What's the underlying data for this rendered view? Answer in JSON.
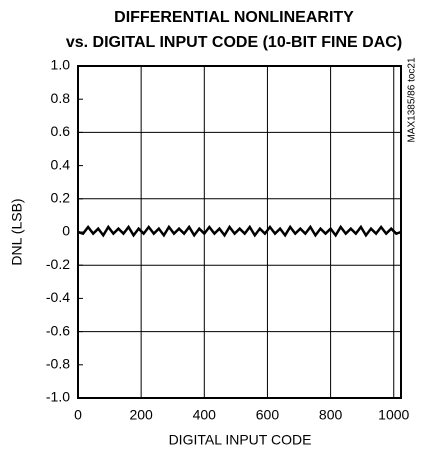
{
  "chart_data": {
    "type": "line",
    "title": "DIFFERENTIAL NONLINEARITY",
    "subtitle": "vs. DIGITAL INPUT CODE (10-BIT FINE DAC)",
    "x_label": "DIGITAL INPUT CODE",
    "y_label": "DNL (LSB)",
    "annotation": "MAX1385/86 toc21",
    "x": [
      0,
      16,
      32,
      48,
      64,
      80,
      96,
      112,
      128,
      144,
      160,
      176,
      192,
      208,
      224,
      240,
      256,
      272,
      288,
      304,
      320,
      336,
      352,
      368,
      384,
      400,
      416,
      432,
      448,
      464,
      480,
      496,
      512,
      528,
      544,
      560,
      576,
      592,
      608,
      624,
      640,
      656,
      672,
      688,
      704,
      720,
      736,
      752,
      768,
      784,
      800,
      816,
      832,
      848,
      864,
      880,
      896,
      912,
      928,
      944,
      960,
      976,
      992,
      1008,
      1023
    ],
    "series": [
      {
        "name": "DNL",
        "color": "#000000",
        "values": [
          0,
          -0.01,
          0.03,
          -0.01,
          0.02,
          -0.02,
          0.03,
          -0.01,
          0.02,
          -0.01,
          0.03,
          -0.02,
          0.02,
          -0.01,
          0.03,
          -0.01,
          0.02,
          -0.02,
          0.03,
          -0.01,
          0.02,
          -0.01,
          0.03,
          -0.02,
          0.02,
          -0.01,
          0.03,
          -0.01,
          0.02,
          -0.02,
          0.03,
          -0.01,
          0.02,
          -0.01,
          0.03,
          -0.02,
          0.02,
          -0.01,
          0.03,
          -0.01,
          0.02,
          -0.02,
          0.03,
          -0.01,
          0.02,
          -0.01,
          0.03,
          -0.02,
          0.02,
          -0.01,
          0.02,
          -0.02,
          0.03,
          -0.01,
          0.02,
          -0.01,
          0.03,
          -0.02,
          0.02,
          -0.01,
          0.03,
          -0.01,
          0.02,
          -0.01,
          0
        ]
      }
    ],
    "xlim": [
      0,
      1023
    ],
    "xticks": [
      0,
      200,
      400,
      600,
      800,
      1000
    ],
    "ylim": [
      -1.0,
      1.0
    ],
    "yticks": [
      {
        "value": 1.0,
        "label": "1.0"
      },
      0.8,
      0.6,
      0.4,
      0.2,
      0,
      -0.2,
      -0.4,
      -0.6,
      -0.8,
      {
        "value": -1.0,
        "label": "-1.0"
      }
    ],
    "grid": true
  }
}
